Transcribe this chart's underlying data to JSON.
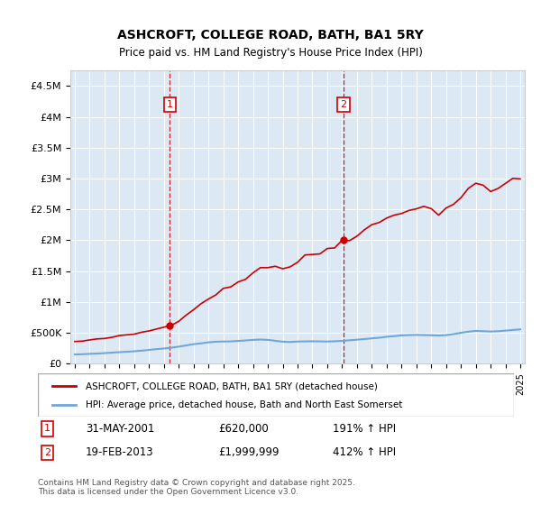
{
  "title": "ASHCROFT, COLLEGE ROAD, BATH, BA1 5RY",
  "subtitle": "Price paid vs. HM Land Registry's House Price Index (HPI)",
  "bg_color": "#dce9f5",
  "plot_bg": "#dce9f5",
  "legend1": "ASHCROFT, COLLEGE ROAD, BATH, BA1 5RY (detached house)",
  "legend2": "HPI: Average price, detached house, Bath and North East Somerset",
  "footer": "Contains HM Land Registry data © Crown copyright and database right 2025.\nThis data is licensed under the Open Government Licence v3.0.",
  "sale1_date": "31-MAY-2001",
  "sale1_price": "£620,000",
  "sale1_hpi": "191% ↑ HPI",
  "sale2_date": "19-FEB-2013",
  "sale2_price": "£1,999,999",
  "sale2_hpi": "412% ↑ HPI",
  "ylim": [
    0,
    4750000
  ],
  "yticks": [
    0,
    500000,
    1000000,
    1500000,
    2000000,
    2500000,
    3000000,
    3500000,
    4000000,
    4500000
  ],
  "ytick_labels": [
    "£0",
    "£500K",
    "£1M",
    "£1.5M",
    "£2M",
    "£2.5M",
    "£3M",
    "£3.5M",
    "£4M",
    "£4.5M"
  ],
  "hpi_color": "#6fa8d8",
  "price_color": "#cc0000",
  "vline_color": "#cc0000",
  "marker_color": "#cc0000"
}
